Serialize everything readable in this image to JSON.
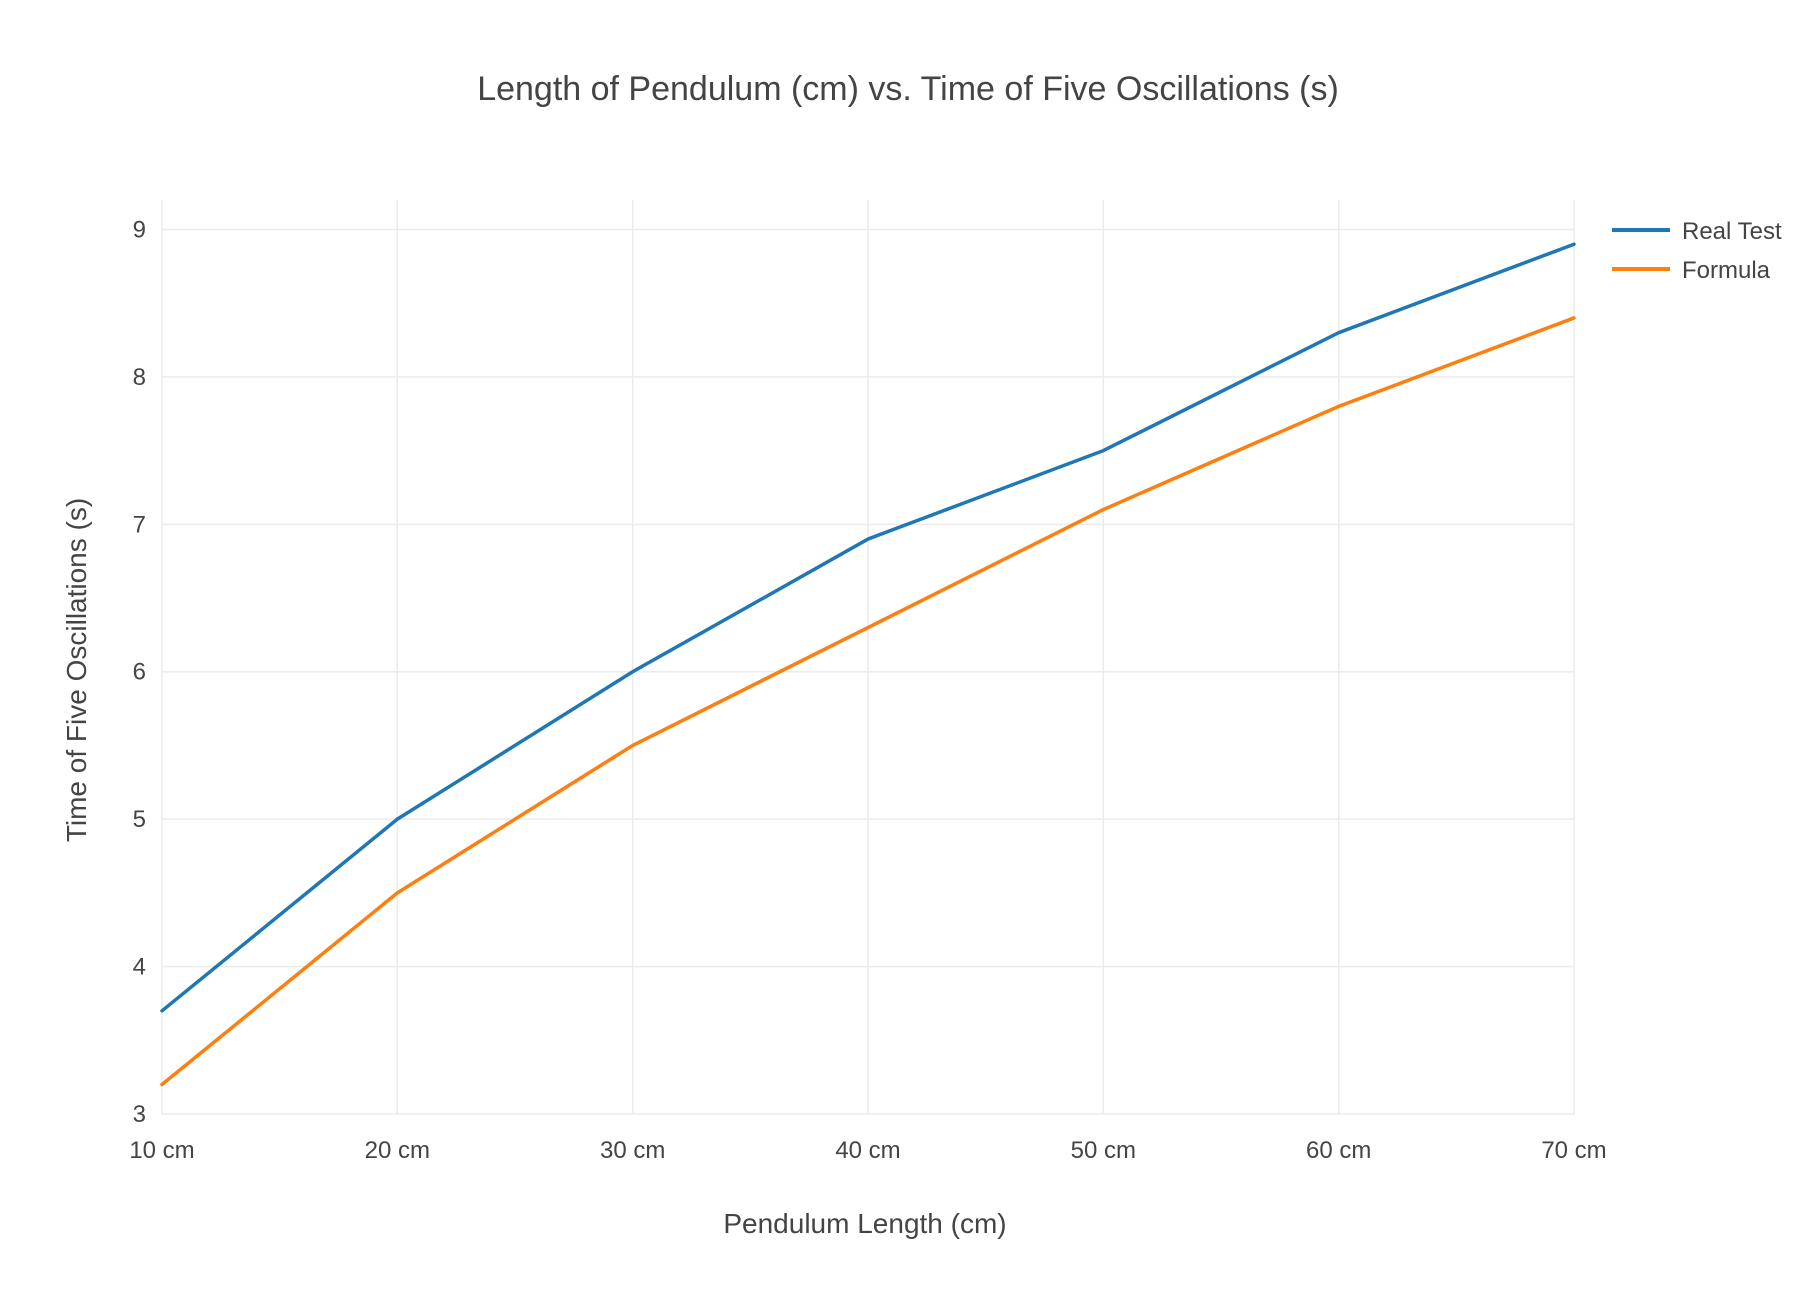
{
  "chart_data": {
    "type": "line",
    "title": "Length of Pendulum (cm) vs. Time of Five Oscillations (s)",
    "xlabel": "Pendulum Length (cm)",
    "ylabel": "Time of Five Oscillations (s)",
    "categories": [
      "10 cm",
      "20 cm",
      "30 cm",
      "40 cm",
      "50 cm",
      "60 cm",
      "70 cm"
    ],
    "y_ticks": [
      3,
      4,
      5,
      6,
      7,
      8,
      9
    ],
    "ylim": [
      3,
      9.2
    ],
    "grid": true,
    "legend_position": "top-right",
    "series": [
      {
        "name": "Real Test",
        "color": "#1f77b4",
        "values": [
          3.7,
          5.0,
          6.0,
          6.9,
          7.5,
          8.3,
          8.9
        ]
      },
      {
        "name": "Formula",
        "color": "#ff7f0e",
        "values": [
          3.2,
          4.5,
          5.5,
          6.3,
          7.1,
          7.8,
          8.4
        ]
      }
    ]
  }
}
